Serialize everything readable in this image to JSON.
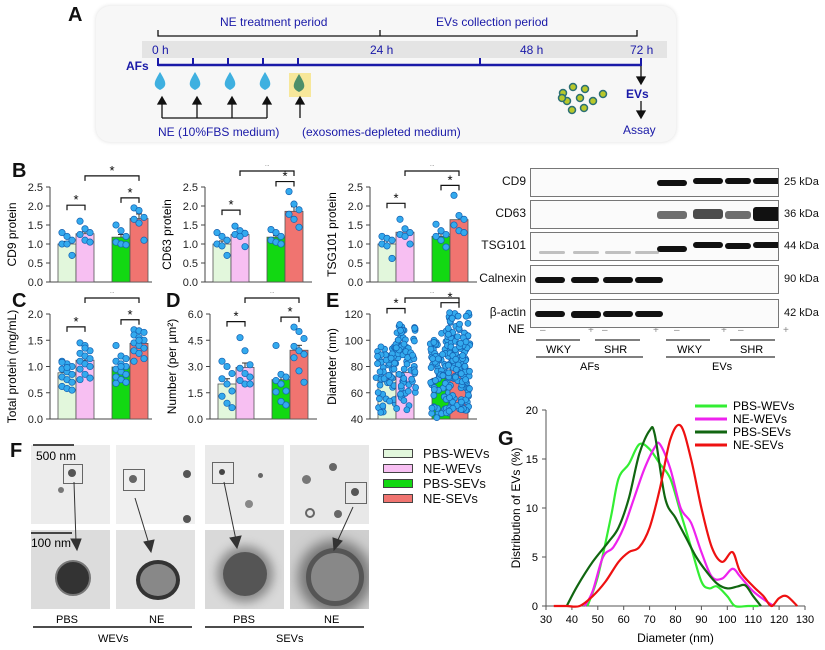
{
  "panels": {
    "A": {
      "label": "A",
      "periods": [
        "NE treatment period",
        "EVs collection period"
      ],
      "time_ticks": [
        "0 h",
        "24 h",
        "48 h",
        "72 h"
      ],
      "start_label": "AFs",
      "ne_note": "NE (10%FBS medium)",
      "depleted_note": "(exosomes-depleted medium)",
      "evs_label": "EVs",
      "assay_label": "Assay"
    },
    "B_label": "B",
    "C_label": "C",
    "D_label": "D",
    "E_label": "E",
    "F": {
      "label": "F",
      "scale_top": "500 nm",
      "scale_bottom": "100 nm",
      "columns": [
        "PBS",
        "NE",
        "PBS",
        "NE"
      ],
      "groups": [
        "WEVs",
        "SEVs"
      ]
    },
    "G_label": "G",
    "blot": {
      "rows": [
        {
          "name": "CD9",
          "kda": "25 kDa"
        },
        {
          "name": "CD63",
          "kda": "36 kDa"
        },
        {
          "name": "TSG101",
          "kda": "44 kDa"
        },
        {
          "name": "Calnexin",
          "kda": "90 kDa"
        },
        {
          "name": "β-actin",
          "kda": "42 kDa"
        }
      ],
      "ne_label": "NE",
      "ne_signs": [
        "–",
        "+",
        "–",
        "+",
        "–",
        "+",
        "–",
        "+"
      ],
      "strains": [
        "WKY",
        "SHR",
        "WKY",
        "SHR"
      ],
      "sources": [
        "AFs",
        "EVs"
      ]
    },
    "legend": [
      "PBS-WEVs",
      "NE-WEVs",
      "PBS-SEVs",
      "NE-SEVs"
    ]
  },
  "colors": {
    "pbs_wevs_bar": "#e2f7dc",
    "ne_wevs_bar": "#f7bff2",
    "pbs_sevs_bar": "#12d812",
    "ne_sevs_bar": "#f07470",
    "dot": "#33aaee",
    "timeline": "#1a1aa8",
    "g_pbs_wevs": "#33ee33",
    "g_ne_wevs": "#ee22ee",
    "g_pbs_sevs": "#116611",
    "g_ne_sevs": "#ee1111"
  },
  "chart_data": [
    {
      "id": "B1",
      "type": "bar",
      "ylabel": "CD9 protein",
      "ylim": [
        0,
        2.5
      ],
      "yticks": [
        "0.0",
        "0.5",
        "1.0",
        "1.5",
        "2.0",
        "2.5"
      ],
      "categories": [
        "PBS-WEVs",
        "NE-WEVs",
        "PBS-SEVs",
        "NE-SEVs"
      ],
      "values": [
        1.0,
        1.27,
        1.18,
        1.67
      ],
      "sem": [
        0.07,
        0.05,
        0.07,
        0.12
      ],
      "points": [
        [
          1.3,
          1.2,
          1.1,
          1.0,
          1.0,
          0.7
        ],
        [
          1.6,
          1.4,
          1.3,
          1.25,
          1.1,
          1.05
        ],
        [
          1.5,
          1.35,
          1.2,
          1.05,
          1.0,
          0.98
        ],
        [
          1.95,
          1.88,
          1.7,
          1.65,
          1.55,
          1.1
        ]
      ],
      "significance": [
        "PBS-WEVs vs NE-WEVs *",
        "PBS-SEVs vs NE-SEVs *",
        "NE-WEVs vs NE-SEVs *"
      ]
    },
    {
      "id": "B2",
      "type": "bar",
      "ylabel": "CD63 protein",
      "ylim": [
        0,
        2.5
      ],
      "yticks": [
        "0.0",
        "0.5",
        "1.0",
        "1.5",
        "2.0",
        "2.5"
      ],
      "categories": [
        "PBS-WEVs",
        "NE-WEVs",
        "PBS-SEVs",
        "NE-SEVs"
      ],
      "values": [
        1.0,
        1.25,
        1.18,
        1.86
      ],
      "sem": [
        0.08,
        0.07,
        0.04,
        0.12
      ],
      "points": [
        [
          1.3,
          1.2,
          1.1,
          1.0,
          0.95,
          0.7
        ],
        [
          1.47,
          1.35,
          1.28,
          1.25,
          1.2,
          0.93
        ],
        [
          1.38,
          1.3,
          1.2,
          1.1,
          1.05,
          1.0
        ],
        [
          2.38,
          2.05,
          1.9,
          1.78,
          1.65,
          1.44
        ]
      ],
      "significance": [
        "PBS-WEVs vs NE-WEVs *",
        "PBS-SEVs vs NE-SEVs *",
        "NE-WEVs vs NE-SEVs *"
      ]
    },
    {
      "id": "B3",
      "type": "bar",
      "ylabel": "TSG101 protein",
      "ylim": [
        0,
        2.5
      ],
      "yticks": [
        "0.0",
        "0.5",
        "1.0",
        "1.5",
        "2.0",
        "2.5"
      ],
      "categories": [
        "PBS-WEVs",
        "NE-WEVs",
        "PBS-SEVs",
        "NE-SEVs"
      ],
      "values": [
        1.0,
        1.31,
        1.2,
        1.64
      ],
      "sem": [
        0.08,
        0.07,
        0.07,
        0.13
      ],
      "points": [
        [
          1.2,
          1.15,
          1.1,
          1.0,
          0.95,
          0.62
        ],
        [
          1.65,
          1.4,
          1.3,
          1.25,
          1.2,
          1.0
        ],
        [
          1.52,
          1.35,
          1.25,
          1.2,
          1.1,
          0.92
        ],
        [
          2.28,
          1.75,
          1.65,
          1.5,
          1.35,
          1.3
        ]
      ],
      "significance": [
        "PBS-WEVs vs NE-WEVs *",
        "PBS-SEVs vs NE-SEVs *",
        "NE-WEVs vs NE-SEVs *"
      ]
    },
    {
      "id": "C",
      "type": "bar",
      "ylabel": "Total protein (mg/mL)",
      "ylim": [
        0,
        2.0
      ],
      "yticks": [
        "0.0",
        "0.5",
        "1.0",
        "1.5",
        "2.0"
      ],
      "categories": [
        "PBS-WEVs",
        "NE-WEVs",
        "PBS-SEVs",
        "NE-SEVs"
      ],
      "values": [
        0.88,
        1.12,
        0.99,
        1.44
      ],
      "sem": [
        0.05,
        0.05,
        0.05,
        0.04
      ],
      "points": [
        [
          1.1,
          1.05,
          1.0,
          0.95,
          0.9,
          0.85,
          0.8,
          0.75,
          0.7,
          0.62,
          0.58,
          0.55,
          1.08,
          0.98
        ],
        [
          1.45,
          1.4,
          1.3,
          1.25,
          1.2,
          1.15,
          1.1,
          1.05,
          1.0,
          0.95,
          0.85,
          0.78,
          0.75,
          1.35
        ],
        [
          1.4,
          1.2,
          1.15,
          1.1,
          1.05,
          1.0,
          0.95,
          0.9,
          0.85,
          0.8,
          0.75,
          0.7,
          0.68,
          1.0
        ],
        [
          1.7,
          1.68,
          1.65,
          1.6,
          1.55,
          1.5,
          1.45,
          1.4,
          1.35,
          1.3,
          1.25,
          1.15,
          1.1,
          1.5
        ]
      ],
      "significance": [
        "PBS-WEVs vs NE-WEVs *",
        "PBS-SEVs vs NE-SEVs *",
        "NE-WEVs vs NE-SEVs *"
      ]
    },
    {
      "id": "D",
      "type": "bar",
      "ylabel": "Number (per µm²)",
      "ylim": [
        0,
        6.0
      ],
      "yticks": [
        "0.0",
        "1.5",
        "3.0",
        "4.5",
        "6.0"
      ],
      "categories": [
        "PBS-WEVs",
        "NE-WEVs",
        "PBS-SEVs",
        "NE-SEVs"
      ],
      "values": [
        2.0,
        2.95,
        2.25,
        3.93
      ],
      "sem": [
        0.3,
        0.25,
        0.3,
        0.28
      ],
      "points": [
        [
          3.3,
          3.0,
          2.6,
          2.3,
          2.0,
          1.6,
          1.3,
          0.9,
          0.65
        ],
        [
          4.65,
          3.9,
          3.1,
          2.9,
          2.6,
          2.4,
          2.2,
          2.0,
          2.0
        ],
        [
          4.2,
          2.55,
          2.4,
          2.2,
          2.0,
          1.6,
          1.55,
          1.0,
          0.8
        ],
        [
          5.25,
          5.0,
          4.6,
          4.15,
          3.9,
          3.7,
          3.5,
          2.75,
          2.1
        ]
      ],
      "significance": [
        "PBS-WEVs vs NE-WEVs *",
        "PBS-SEVs vs NE-SEVs *",
        "NE-WEVs vs NE-SEVs *"
      ]
    },
    {
      "id": "E",
      "type": "bar",
      "ylabel": "Diameter (nm)",
      "ylim": [
        40,
        120
      ],
      "yticks": [
        "40",
        "60",
        "80",
        "100",
        "120"
      ],
      "categories": [
        "PBS-WEVs",
        "NE-WEVs",
        "PBS-SEVs",
        "NE-SEVs"
      ],
      "values": [
        70,
        75.5,
        71,
        80
      ],
      "point_range": [
        [
          45,
          95
        ],
        [
          47,
          112
        ],
        [
          41,
          107
        ],
        [
          46,
          121
        ]
      ],
      "point_count": [
        60,
        70,
        90,
        130
      ],
      "significance": [
        "PBS-WEVs vs NE-WEVs *",
        "PBS-SEVs vs NE-SEVs *",
        "NE-WEVs vs NE-SEVs *"
      ]
    },
    {
      "id": "G",
      "type": "line",
      "xlabel": "Diameter (nm)",
      "ylabel": "Distribution of EVs (%)",
      "xlim": [
        30,
        130
      ],
      "ylim": [
        0,
        20
      ],
      "xticks": [
        "30",
        "40",
        "50",
        "60",
        "70",
        "80",
        "90",
        "100",
        "110",
        "120",
        "130"
      ],
      "yticks": [
        "0",
        "5",
        "10",
        "15",
        "20"
      ],
      "legend_position": "top-right",
      "series": [
        {
          "name": "PBS-WEVs",
          "x": [
            46,
            50,
            55,
            58,
            62,
            66,
            70,
            74,
            78,
            82,
            86,
            90,
            93,
            96,
            100,
            103,
            108,
            112
          ],
          "y": [
            0,
            3,
            9,
            13,
            14.5,
            16.5,
            16,
            14.5,
            13,
            9.5,
            6,
            2.5,
            1.8,
            2,
            1,
            0,
            0,
            0
          ]
        },
        {
          "name": "NE-WEVs",
          "x": [
            45,
            48,
            52,
            56,
            60,
            64,
            68,
            72,
            74,
            78,
            82,
            86,
            90,
            94,
            98,
            102,
            105,
            110,
            115,
            118
          ],
          "y": [
            0,
            1.5,
            5,
            6,
            8,
            11,
            14,
            16.2,
            16.5,
            14,
            10,
            8.5,
            5.5,
            3,
            2.8,
            3.8,
            3,
            1.5,
            0.5,
            0
          ]
        },
        {
          "name": "PBS-SEVs",
          "x": [
            38,
            42,
            48,
            54,
            58,
            62,
            66,
            70,
            72,
            76,
            80,
            84,
            88,
            92,
            96,
            100,
            104,
            107,
            110,
            113
          ],
          "y": [
            0,
            2,
            4.5,
            6.5,
            8,
            11,
            15.5,
            17.9,
            17.5,
            11,
            9,
            7,
            5,
            3.5,
            2.3,
            1.8,
            2,
            2.1,
            1,
            0
          ]
        },
        {
          "name": "NE-SEVs",
          "x": [
            33,
            38,
            43,
            48,
            53,
            58,
            62,
            66,
            70,
            74,
            78,
            82,
            86,
            90,
            94,
            98,
            102,
            105,
            110,
            114,
            117,
            120,
            123,
            127
          ],
          "y": [
            0,
            0,
            0,
            1,
            2.5,
            4.5,
            5.5,
            6,
            8,
            12,
            17,
            18.4,
            15,
            10,
            6,
            4.5,
            5.5,
            3.5,
            2,
            1,
            0,
            0.8,
            1,
            0
          ]
        }
      ]
    }
  ]
}
